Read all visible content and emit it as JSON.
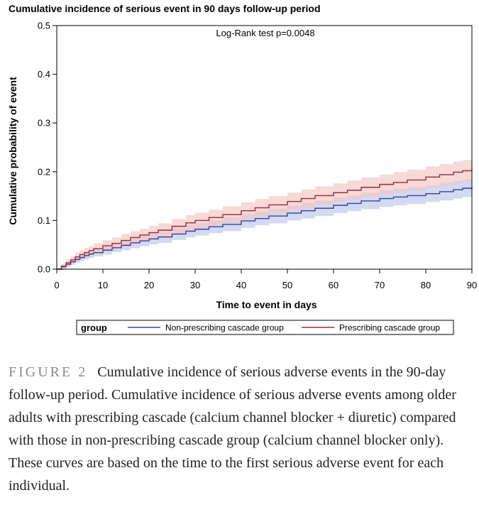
{
  "chart_data": {
    "type": "line",
    "title": "Cumulative incidence of serious event in 90 days follow-up period",
    "xlabel": "Time to event in days",
    "ylabel": "Cumulative probability of event",
    "xlim": [
      0,
      90
    ],
    "ylim": [
      0,
      0.5
    ],
    "xticks": [
      "0",
      "10",
      "20",
      "30",
      "40",
      "50",
      "60",
      "70",
      "80",
      "90"
    ],
    "yticks": [
      "0.0",
      "0.1",
      "0.2",
      "0.3",
      "0.4",
      "0.5"
    ],
    "grid": false,
    "annotation": "Log-Rank test p=0.0048",
    "legend": {
      "title": "group",
      "position": "bottom"
    },
    "series": [
      {
        "name": "Non-prescribing cascade group",
        "color": "#3b3f9e",
        "band_color": "#b9c6e8",
        "x": [
          0,
          1,
          2,
          3,
          4,
          5,
          6,
          7,
          8,
          10,
          12,
          14,
          16,
          18,
          20,
          22,
          25,
          28,
          30,
          33,
          36,
          40,
          43,
          46,
          50,
          53,
          56,
          60,
          63,
          66,
          70,
          73,
          76,
          80,
          83,
          86,
          88,
          90
        ],
        "y": [
          0,
          0.005,
          0.01,
          0.015,
          0.02,
          0.024,
          0.028,
          0.031,
          0.034,
          0.039,
          0.044,
          0.049,
          0.054,
          0.058,
          0.062,
          0.066,
          0.072,
          0.078,
          0.082,
          0.087,
          0.092,
          0.099,
          0.104,
          0.109,
          0.115,
          0.12,
          0.125,
          0.131,
          0.135,
          0.14,
          0.145,
          0.148,
          0.151,
          0.155,
          0.159,
          0.163,
          0.166,
          0.169
        ],
        "lower": [
          0,
          0.001,
          0.005,
          0.009,
          0.013,
          0.017,
          0.02,
          0.023,
          0.026,
          0.03,
          0.035,
          0.039,
          0.043,
          0.047,
          0.051,
          0.054,
          0.06,
          0.065,
          0.069,
          0.074,
          0.078,
          0.085,
          0.09,
          0.094,
          0.1,
          0.104,
          0.109,
          0.115,
          0.119,
          0.123,
          0.128,
          0.131,
          0.134,
          0.138,
          0.141,
          0.145,
          0.148,
          0.151
        ],
        "upper": [
          0,
          0.009,
          0.015,
          0.021,
          0.027,
          0.031,
          0.036,
          0.039,
          0.042,
          0.048,
          0.053,
          0.059,
          0.065,
          0.069,
          0.073,
          0.078,
          0.084,
          0.091,
          0.095,
          0.1,
          0.106,
          0.113,
          0.118,
          0.124,
          0.13,
          0.136,
          0.141,
          0.147,
          0.151,
          0.157,
          0.162,
          0.165,
          0.168,
          0.172,
          0.177,
          0.181,
          0.184,
          0.187
        ]
      },
      {
        "name": "Prescribing cascade group",
        "color": "#9b2b35",
        "band_color": "#f2c4c2",
        "x": [
          0,
          1,
          2,
          3,
          4,
          5,
          6,
          7,
          8,
          10,
          12,
          14,
          16,
          18,
          20,
          22,
          25,
          28,
          30,
          33,
          36,
          40,
          43,
          46,
          50,
          53,
          56,
          60,
          63,
          66,
          70,
          73,
          76,
          80,
          83,
          86,
          88,
          90
        ],
        "y": [
          0,
          0.006,
          0.013,
          0.019,
          0.025,
          0.03,
          0.034,
          0.038,
          0.042,
          0.048,
          0.053,
          0.059,
          0.065,
          0.07,
          0.075,
          0.08,
          0.088,
          0.095,
          0.1,
          0.106,
          0.112,
          0.12,
          0.126,
          0.132,
          0.139,
          0.145,
          0.151,
          0.157,
          0.162,
          0.168,
          0.174,
          0.178,
          0.183,
          0.189,
          0.194,
          0.199,
          0.202,
          0.205
        ],
        "lower": [
          0,
          0.001,
          0.006,
          0.011,
          0.016,
          0.021,
          0.024,
          0.028,
          0.031,
          0.037,
          0.041,
          0.046,
          0.052,
          0.057,
          0.061,
          0.066,
          0.073,
          0.079,
          0.084,
          0.09,
          0.095,
          0.103,
          0.108,
          0.114,
          0.121,
          0.126,
          0.132,
          0.138,
          0.142,
          0.148,
          0.154,
          0.157,
          0.162,
          0.167,
          0.172,
          0.177,
          0.18,
          0.183
        ],
        "upper": [
          0,
          0.011,
          0.02,
          0.027,
          0.034,
          0.039,
          0.044,
          0.048,
          0.053,
          0.059,
          0.065,
          0.072,
          0.078,
          0.083,
          0.089,
          0.094,
          0.103,
          0.111,
          0.116,
          0.122,
          0.129,
          0.137,
          0.144,
          0.15,
          0.157,
          0.164,
          0.17,
          0.176,
          0.182,
          0.188,
          0.194,
          0.199,
          0.204,
          0.211,
          0.216,
          0.221,
          0.224,
          0.227
        ]
      }
    ]
  },
  "caption": {
    "label": "FIGURE 2",
    "text": "Cumulative incidence of serious adverse events in the 90-day follow-up period. Cumulative incidence of serious adverse events among older adults with prescribing cascade (calcium channel blocker + diuretic) compared with those in non-prescribing cascade group (calcium channel blocker only). These curves are based on the time to the first serious adverse event for each individual."
  }
}
